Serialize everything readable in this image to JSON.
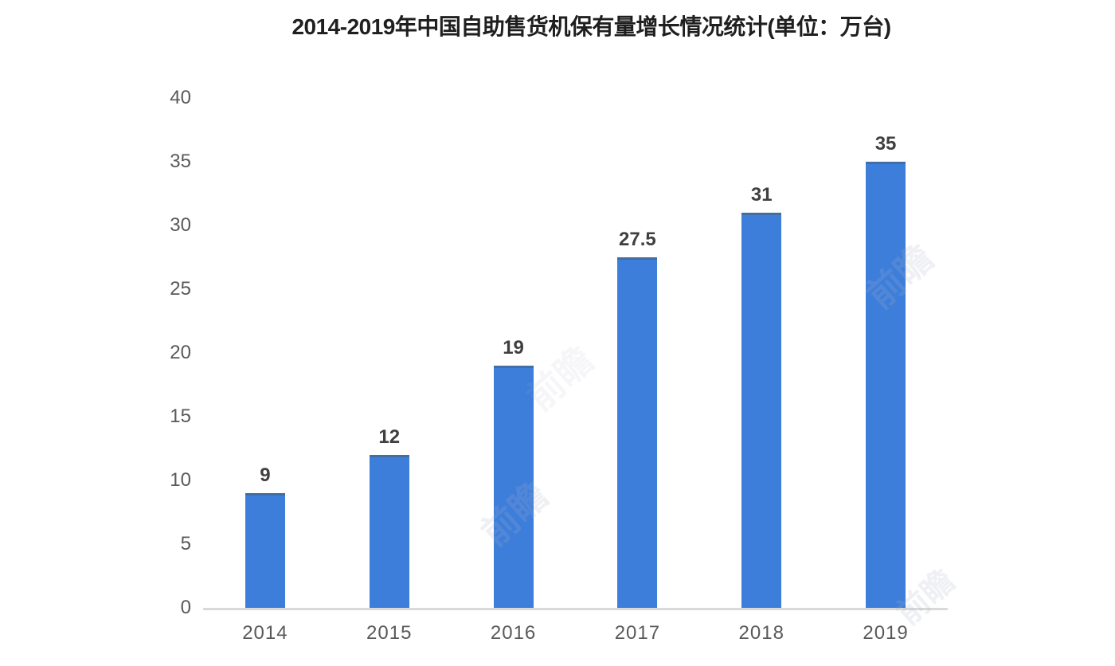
{
  "chart_data": {
    "type": "bar",
    "title": "2014-2019年中国自助售货机保有量增长情况统计(单位：万台)",
    "categories": [
      "2014",
      "2015",
      "2016",
      "2017",
      "2018",
      "2019"
    ],
    "values": [
      9,
      12,
      19,
      27.5,
      31,
      35
    ],
    "value_labels": [
      "9",
      "12",
      "19",
      "27.5",
      "31",
      "35"
    ],
    "yticks": [
      0,
      5,
      10,
      15,
      20,
      25,
      30,
      35,
      40
    ],
    "ylim": [
      0,
      40
    ],
    "xlabel": "",
    "ylabel": "",
    "grid": false,
    "legend": "none",
    "bar_color": "#3d7edb",
    "bar_top_edge_color": "#4a5f75",
    "axis_line_color": "#d9d9d9",
    "tick_label_color": "#595959",
    "value_label_color": "#3f3f3f",
    "title_color": "#1f1f1f",
    "background_color": "#ffffff"
  },
  "watermark": {
    "text": "前瞻"
  }
}
